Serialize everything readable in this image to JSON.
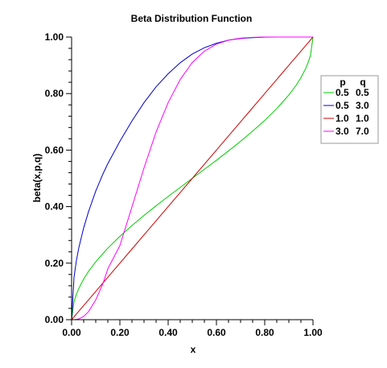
{
  "chart_data": {
    "type": "line",
    "title": "Beta Distribution Function",
    "xlabel": "x",
    "ylabel": "beta(x,p,q)",
    "xlim": [
      0,
      1
    ],
    "ylim": [
      0,
      1
    ],
    "xticks": [
      0.0,
      0.2,
      0.4,
      0.6,
      0.8,
      1.0
    ],
    "xtick_labels": [
      "0.00",
      "0.20",
      "0.40",
      "0.60",
      "0.80",
      "1.00"
    ],
    "yticks": [
      0.0,
      0.2,
      0.4,
      0.6,
      0.8,
      1.0
    ],
    "ytick_labels": [
      "0.00",
      "0.20",
      "0.40",
      "0.60",
      "0.80",
      "1.00"
    ],
    "grid": false,
    "legend_placement": "right",
    "legend_headers": [
      "p",
      "q"
    ],
    "x": [
      0.0,
      0.01,
      0.02,
      0.03,
      0.05,
      0.07,
      0.1,
      0.13,
      0.15,
      0.2,
      0.25,
      0.3,
      0.35,
      0.4,
      0.45,
      0.5,
      0.55,
      0.6,
      0.65,
      0.7,
      0.75,
      0.8,
      0.85,
      0.87,
      0.9,
      0.93,
      0.95,
      0.97,
      0.98,
      0.99,
      1.0
    ],
    "series": [
      {
        "p": "0.5",
        "q": "0.5",
        "color": "#00cc00",
        "values": [
          0.0,
          0.064,
          0.09,
          0.111,
          0.144,
          0.171,
          0.205,
          0.234,
          0.253,
          0.295,
          0.333,
          0.369,
          0.403,
          0.436,
          0.468,
          0.5,
          0.532,
          0.564,
          0.597,
          0.631,
          0.667,
          0.705,
          0.747,
          0.766,
          0.795,
          0.829,
          0.856,
          0.889,
          0.91,
          0.936,
          1.0
        ]
      },
      {
        "p": "0.5",
        "q": "3.0",
        "color": "#0000cc",
        "values": [
          0.0,
          0.15,
          0.21,
          0.255,
          0.325,
          0.382,
          0.455,
          0.516,
          0.552,
          0.631,
          0.703,
          0.768,
          0.824,
          0.87,
          0.909,
          0.94,
          0.962,
          0.978,
          0.989,
          0.995,
          0.998,
          0.9995,
          1.0,
          1.0,
          1.0,
          1.0,
          1.0,
          1.0,
          1.0,
          1.0,
          1.0
        ]
      },
      {
        "p": "1.0",
        "q": "1.0",
        "color": "#cc0000",
        "values": [
          0.0,
          0.01,
          0.02,
          0.03,
          0.05,
          0.07,
          0.1,
          0.13,
          0.15,
          0.2,
          0.25,
          0.3,
          0.35,
          0.4,
          0.45,
          0.5,
          0.55,
          0.6,
          0.65,
          0.7,
          0.75,
          0.8,
          0.85,
          0.87,
          0.9,
          0.93,
          0.95,
          0.97,
          0.98,
          0.99,
          1.0
        ]
      },
      {
        "p": "3.0",
        "q": "7.0",
        "color": "#ff00ff",
        "values": [
          0.0,
          0.0001,
          0.0009,
          0.0028,
          0.0116,
          0.0283,
          0.07,
          0.128,
          0.18,
          0.262,
          0.399,
          0.537,
          0.664,
          0.768,
          0.85,
          0.91,
          0.95,
          0.975,
          0.989,
          0.996,
          0.999,
          1.0,
          1.0,
          1.0,
          1.0,
          1.0,
          1.0,
          1.0,
          1.0,
          1.0,
          1.0
        ]
      }
    ]
  }
}
